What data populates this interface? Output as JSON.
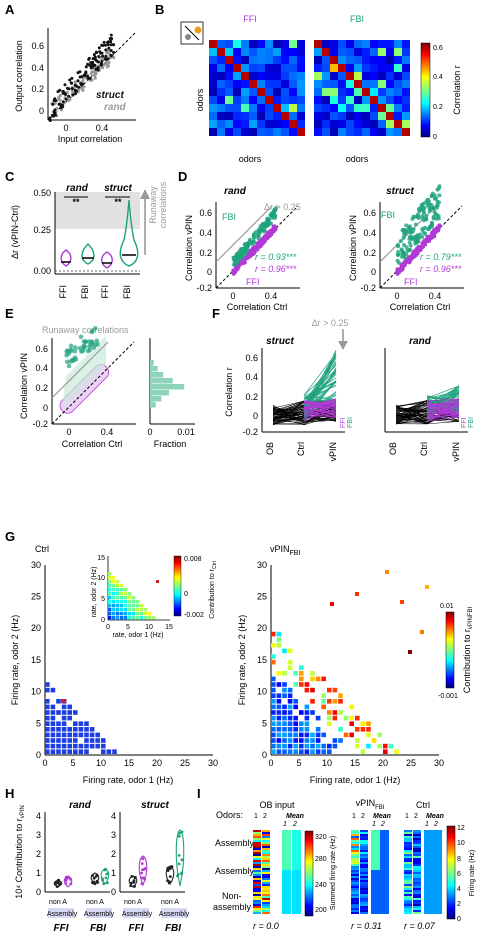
{
  "colors": {
    "ffi": "#b03ad6",
    "fbi": "#1fa37e",
    "fbi_light": "#8fd3b9",
    "ffi_light": "#d8a1ee",
    "grey": "#9a9a9a",
    "dark": "#111111"
  },
  "panels": {
    "A": {
      "label": "A",
      "ylabel": "Output correlation",
      "xlabel": "Input correlation",
      "xticks": [
        "0",
        "0.4"
      ],
      "yticks": [
        "0",
        "0.2",
        "0.4",
        "0.6"
      ],
      "legend": [
        {
          "text": "struct",
          "color": "#111111"
        },
        {
          "text": "rand",
          "color": "#9a9a9a"
        }
      ]
    },
    "B": {
      "label": "B",
      "titles": [
        "FFI",
        "FBI"
      ],
      "ylabel": "odors",
      "xlabel": "odors",
      "cbar_label": "Correlation r",
      "cbar_ticks": [
        "0",
        "0.2",
        "0.4",
        "0.6"
      ]
    },
    "C": {
      "label": "C",
      "ylabel": "Δr (vPIN-Ctrl)",
      "yticks": [
        "0.00",
        "0.25",
        "0.50"
      ],
      "groups": [
        "rand",
        "struct"
      ],
      "sig": [
        "**",
        "**"
      ],
      "xcats": [
        "FFI",
        "FBI",
        "FFI",
        "FBI"
      ],
      "runaway": [
        "Runaway",
        "correlations"
      ]
    },
    "D": {
      "label": "D",
      "titles": [
        "rand",
        "struct"
      ],
      "ylabel": "Correlation vPIN",
      "xlabel": "Correlation Ctrl",
      "xticks": [
        "0",
        "0.4"
      ],
      "yticks": [
        "-0.2",
        "0",
        "0.2",
        "0.4",
        "0.6"
      ],
      "thresh": "Δr > 0.25",
      "fbi": "FBI",
      "ffi": "FFI",
      "stats": [
        {
          "fbi": "r = 0.93***",
          "ffi": "r = 0.96***"
        },
        {
          "fbi": "r = 0.79***",
          "ffi": "r = 0.96***"
        }
      ]
    },
    "E": {
      "label": "E",
      "title": "Runaway correlations",
      "ylabel": "Correlation vPIN",
      "xlabel": "Correlation Ctrl",
      "xticks": [
        "0",
        "0.4"
      ],
      "yticks": [
        "-0.2",
        "0",
        "0.2",
        "0.4",
        "0.6"
      ],
      "hist_xlabel": "Fraction",
      "hist_xticks": [
        "0",
        "0.01"
      ]
    },
    "F": {
      "label": "F",
      "titles": [
        "struct",
        "rand"
      ],
      "ylabel": "Correlation r",
      "thresh": "Δr > 0.25",
      "xcats": [
        "OB",
        "Ctrl",
        "vPIN"
      ],
      "yticks": [
        "-0.2",
        "0",
        "0.2",
        "0.4",
        "0.6"
      ],
      "legend": [
        "FFI",
        "FBI"
      ]
    },
    "G": {
      "label": "G",
      "title_ctrl": "Ctrl",
      "title_vpin": "vPIN",
      "title_vpin_sub": "FBI",
      "ylabel": "Firing rate, odor 2 (Hz)",
      "xlabel": "Firing rate, odor 1 (Hz)",
      "ticks": [
        "0",
        "5",
        "10",
        "15",
        "20",
        "25",
        "30"
      ],
      "inset_ylabel": "rate, odor 2 (Hz)",
      "inset_xlabel": "rate, odor 1 (Hz)",
      "inset_ticks": [
        "0",
        "5",
        "10",
        "15"
      ],
      "inset_cbar_ticks": [
        "0.008",
        "0",
        "-0.002"
      ],
      "inset_cbar_label": "Contribution to r",
      "inset_cbar_sub": "Ctrl",
      "cbar_ticks": [
        "0.01",
        "-0.001"
      ],
      "cbar_label": "Contribution to r",
      "cbar_sub": "vPINFBI"
    },
    "H": {
      "label": "H",
      "titles": [
        "rand",
        "struct"
      ],
      "ylabel": "10⁴ Contribution to r",
      "ylabel_sub": "vPIN",
      "yticks": [
        "0",
        "1",
        "2",
        "3",
        "4"
      ],
      "xcats": [
        "non A",
        "Assembly",
        "non A",
        "Assembly"
      ],
      "groups": [
        "FFI",
        "FBI"
      ]
    },
    "I": {
      "label": "I",
      "titles": [
        "OB input",
        "vPIN",
        "Ctrl"
      ],
      "vpin_sub": "FBI",
      "odors_label": "Odors:",
      "odor_cols": [
        "1",
        "2"
      ],
      "mean": "Mean",
      "mean_cols": [
        "1",
        "2"
      ],
      "rows": [
        "Assembly 1",
        "Assembly 2",
        "Non-",
        "assembly"
      ],
      "r_values": [
        "r = 0.0",
        "r = 0.31",
        "r = 0.07"
      ],
      "cbar1_label": "Summed firing rate (Hz)",
      "cbar1_ticks": [
        "320",
        "280",
        "240",
        "200"
      ],
      "cbar2_label": "Firing rate (Hz)",
      "cbar2_ticks": [
        "12",
        "10",
        "8",
        "6",
        "4",
        "2",
        "0"
      ]
    }
  }
}
